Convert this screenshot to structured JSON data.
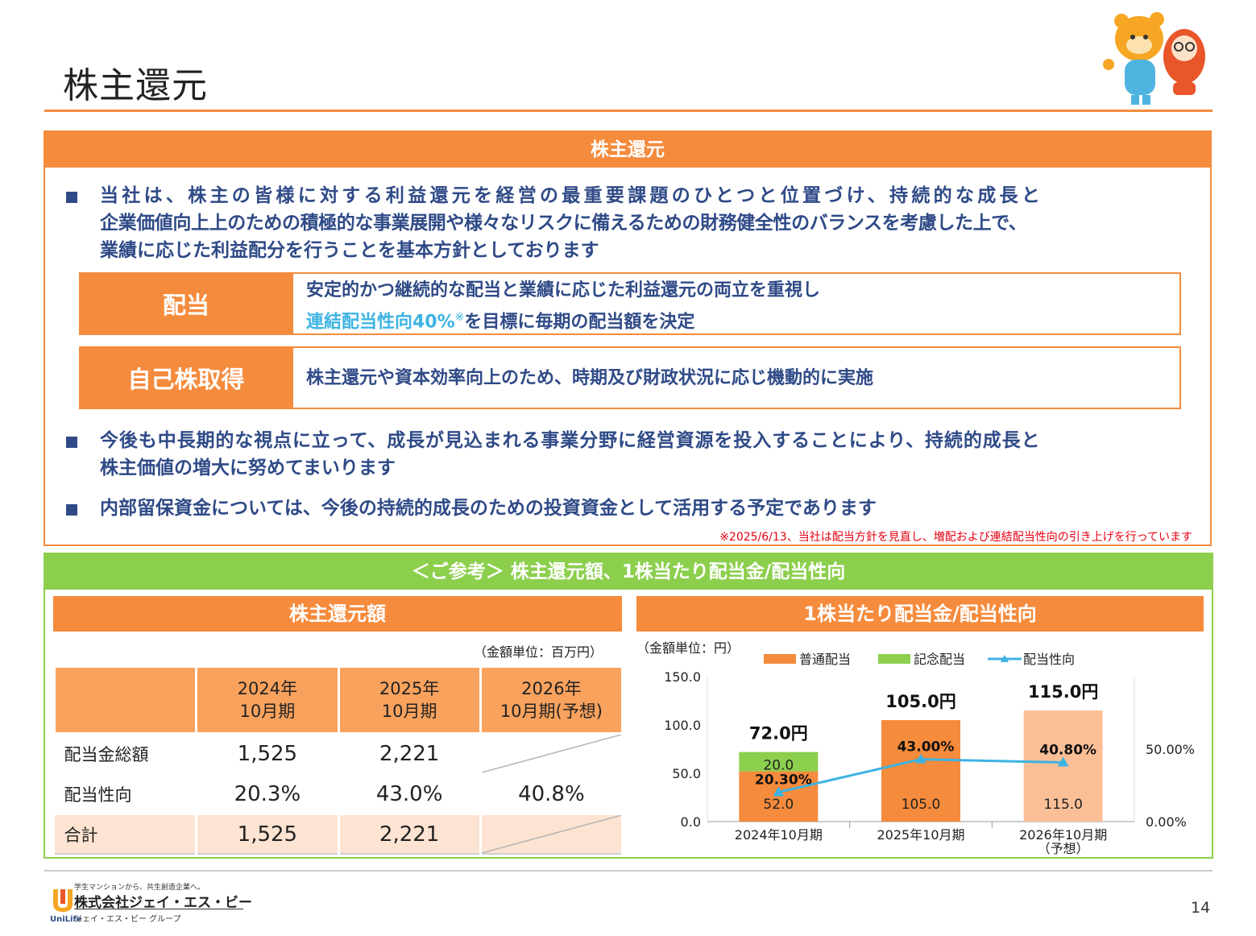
{
  "page": {
    "title": "株主還元",
    "page_number": "14"
  },
  "section1": {
    "header": "株主還元",
    "bullet1": [
      "当社は、株主の皆様に対する利益還元を経営の最重要課題のひとつと位置づけ、持続的な成長と",
      "企業価値向上上のための積極的な事業展開や様々なリスクに備えるための財務健全性のバランスを考慮した上で、",
      "業績に応じた利益配分を行うことを基本方針としております"
    ],
    "dividend": {
      "label": "配当",
      "line1": "安定的かつ継続的な配当と業績に応じた利益還元の両立を重視し",
      "highlight": "連結配当性向40%",
      "mark": "※",
      "line2_rest": "を目標に毎期の配当額を決定"
    },
    "buyback": {
      "label": "自己株取得",
      "text": "株主還元や資本効率向上のため、時期及び財政状況に応じ機動的に実施"
    },
    "bullet2": [
      "今後も中長期的な視点に立って、成長が見込まれる事業分野に経営資源を投入することにより、持続的成長と",
      "株主価値の増大に努めてまいります"
    ],
    "bullet3": "内部留保資金については、今後の持続的成長のための投資資金として活用する予定であります",
    "footnote": "※2025/6/13、当社は配当方針を見直し、増配および連結配当性向の引き上げを行っています"
  },
  "section2": {
    "header": "＜ご参考＞ 株主還元額、1株当たり配当金/配当性向",
    "left_title": "株主還元額",
    "right_title": "1株当たり配当金/配当性向",
    "table_unit": "（金額単位：百万円）",
    "table": {
      "columns": [
        [
          "2024年",
          "10月期"
        ],
        [
          "2025年",
          "10月期"
        ],
        [
          "2026年",
          "10月期(予想)"
        ]
      ],
      "rows": [
        {
          "label": "配当金総額",
          "values": [
            "1,525",
            "2,221",
            ""
          ]
        },
        {
          "label": "配当性向",
          "values": [
            "20.3%",
            "43.0%",
            "40.8%"
          ]
        },
        {
          "label": "合計",
          "values": [
            "1,525",
            "2,221",
            ""
          ]
        }
      ]
    }
  },
  "chart_data": {
    "type": "bar",
    "unit_label": "（金額単位：円）",
    "categories": [
      "2024年10月期",
      "2025年10月期",
      "2026年10月期\n（予想）"
    ],
    "series": [
      {
        "name": "普通配当",
        "values": [
          52.0,
          105.0,
          115.0
        ],
        "labels": [
          "52.0",
          "105.0",
          "115.0"
        ],
        "colors": [
          "#f58b3c",
          "#f58b3c",
          "#fbbf98"
        ]
      },
      {
        "name": "記念配当",
        "values": [
          20.0,
          0,
          0
        ],
        "labels": [
          "20.0",
          "",
          ""
        ],
        "color": "#8ccf4d"
      },
      {
        "name": "配当性向",
        "type": "line",
        "axis": "right",
        "values": [
          20.3,
          43.0,
          40.8
        ],
        "labels": [
          "20.30%",
          "43.00%",
          "40.80%"
        ],
        "color": "#3db3e3"
      }
    ],
    "totals": [
      "72.0円",
      "105.0円",
      "115.0円"
    ],
    "y_left": {
      "min": 0,
      "max": 150,
      "ticks": [
        "0.0",
        "50.0",
        "100.0",
        "150.0"
      ]
    },
    "y_right": {
      "min": 0,
      "max": 100,
      "ticks": [
        "0.00%",
        "50.00%"
      ]
    },
    "legend_position": "top"
  },
  "company": {
    "tagline": "学生マンションから、共生創造企業へ。",
    "name": "株式会社ジェイ・エス・ビー",
    "group": "ジェイ・エス・ビー グループ",
    "logo_text": "UniLife"
  },
  "colors": {
    "orange": "#f58b3c",
    "green": "#8ccf4d",
    "navy": "#2f4a87",
    "cyan": "#3db3e3",
    "red": "#e60012"
  }
}
